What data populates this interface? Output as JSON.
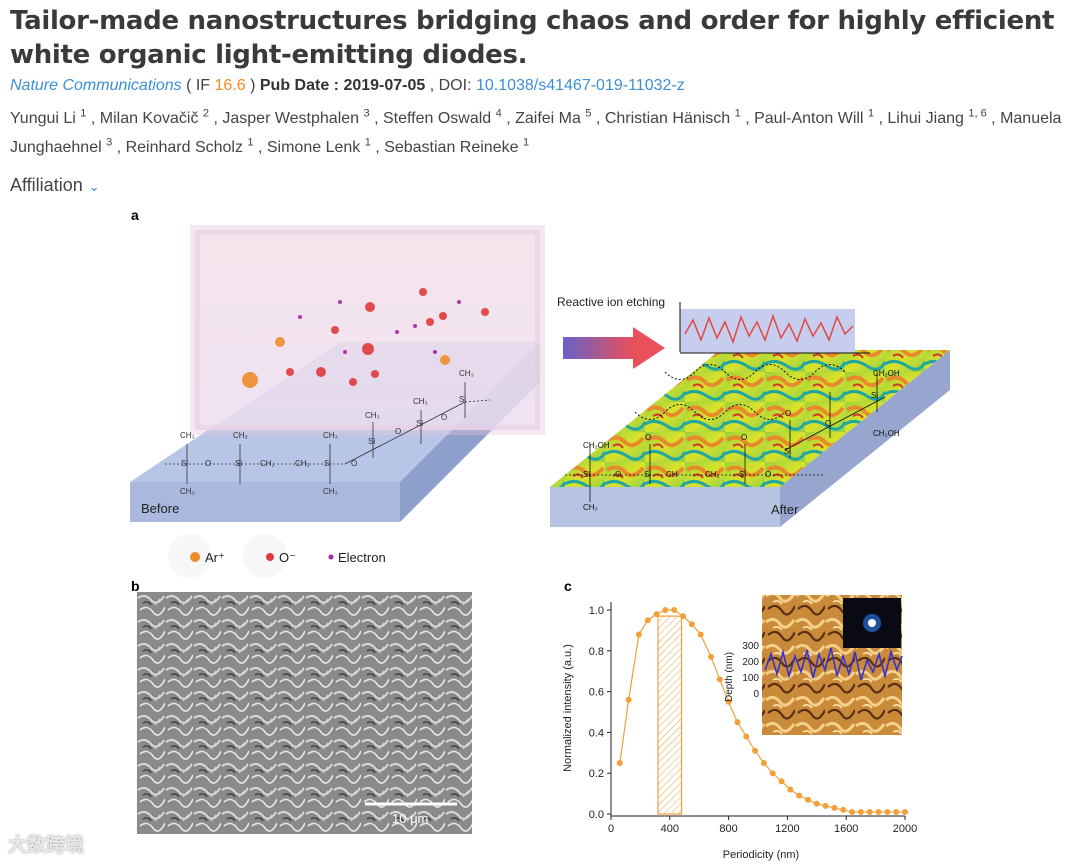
{
  "article": {
    "title": "Tailor-made nanostructures bridging chaos and order for highly efficient white organic light-emitting diodes.",
    "journal": "Nature Communications",
    "if_open": " ( IF ",
    "impact_factor": "16.6",
    "if_close": " ) ",
    "pub_date_label": "Pub Date : 2019-07-05",
    "doi_label": " , DOI: ",
    "doi": "10.1038/s41467-019-11032-z",
    "authors": [
      {
        "name": "Yungui Li",
        "aff": "1"
      },
      {
        "name": "Milan Kovačič",
        "aff": "2"
      },
      {
        "name": "Jasper Westphalen",
        "aff": "3"
      },
      {
        "name": "Steffen Oswald",
        "aff": "4"
      },
      {
        "name": "Zaifei Ma",
        "aff": "5"
      },
      {
        "name": "Christian Hänisch",
        "aff": "1"
      },
      {
        "name": "Paul-Anton Will",
        "aff": "1"
      },
      {
        "name": "Lihui Jiang",
        "aff": "1, 6"
      },
      {
        "name": "Manuela Junghaehnel",
        "aff": "3"
      },
      {
        "name": "Reinhard Scholz",
        "aff": "1"
      },
      {
        "name": "Simone Lenk",
        "aff": "1"
      },
      {
        "name": "Sebastian Reineke",
        "aff": "1"
      }
    ],
    "affiliation_label": "Affiliation"
  },
  "figure": {
    "panel_a": {
      "label": "a",
      "before": "Before",
      "after": "After",
      "process": "Reactive ion etching",
      "legend": [
        "Ar⁺",
        "O⁻",
        "Electron"
      ],
      "chem_left": [
        "CH₃",
        "Si",
        "O",
        "CH₂",
        "CH₃",
        "Si",
        "O",
        "Si",
        "O",
        "Si",
        "CH₃"
      ],
      "chem_right": [
        "CH₂OH",
        "Si",
        "O",
        "Si",
        "CH",
        "CH₂",
        "Si",
        "O",
        "CH₃",
        "CH₂OH",
        "Si",
        "CH₂OH",
        "O"
      ]
    },
    "panel_b": {
      "label": "b",
      "scale_bar": "10 μm"
    },
    "panel_c": {
      "label": "c"
    },
    "colors": {
      "orange": "#f2a03b",
      "blue": "#5a7fc0",
      "accent_link": "#3b8ed8"
    }
  },
  "chart_data": {
    "type": "line",
    "xlabel": "Periodicity (nm)",
    "ylabel": "Normalized intensity (a.u.)",
    "xlim": [
      0,
      2000
    ],
    "ylim": [
      0,
      1.0
    ],
    "xticks": [
      0,
      400,
      800,
      1200,
      1600,
      2000
    ],
    "yticks": [
      0.0,
      0.2,
      0.4,
      0.6,
      0.8,
      1.0
    ],
    "highlight_range": [
      320,
      480
    ],
    "series": [
      {
        "x": [
          60,
          120,
          190,
          250,
          310,
          370,
          430,
          490,
          550,
          610,
          680,
          740,
          800,
          860,
          920,
          980,
          1040,
          1100,
          1160,
          1220,
          1280,
          1340,
          1400,
          1460,
          1520,
          1580,
          1640,
          1700,
          1760,
          1820,
          1880,
          1940,
          2000
        ],
        "y": [
          0.25,
          0.56,
          0.88,
          0.95,
          0.98,
          1.0,
          1.0,
          0.97,
          0.93,
          0.88,
          0.77,
          0.66,
          0.55,
          0.45,
          0.38,
          0.31,
          0.25,
          0.2,
          0.16,
          0.12,
          0.09,
          0.07,
          0.05,
          0.04,
          0.03,
          0.02,
          0.01,
          0.01,
          0.01,
          0.01,
          0.01,
          0.01,
          0.01
        ]
      }
    ],
    "inset": {
      "ylabel": "Depth (nm)",
      "yticks": [
        0,
        100,
        200,
        300
      ]
    }
  },
  "watermark": "大数跨境"
}
